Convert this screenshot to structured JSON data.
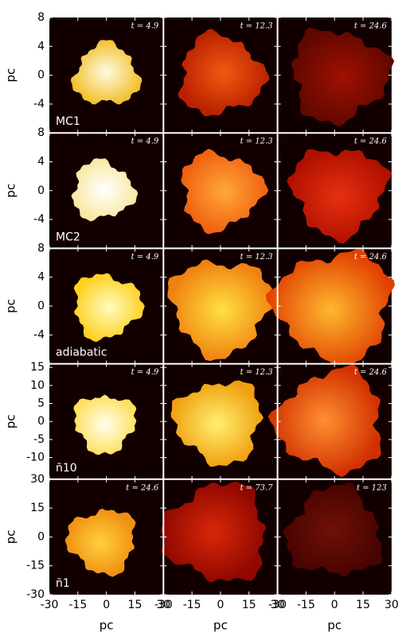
{
  "chart_data": {
    "type": "image-grid",
    "xlabel": "pc",
    "ylabel": "pc",
    "xlim": [
      -30,
      30
    ],
    "xticks": [
      -30,
      -15,
      0,
      15,
      30
    ],
    "rows": [
      {
        "label": "MC1",
        "ylim": [
          -8,
          8
        ],
        "yticks": [
          -4,
          0,
          4,
          8
        ],
        "times": [
          "t = 4.9",
          "t = 12.3",
          "t = 24.6"
        ],
        "colors": [
          [
            "#fffbe0",
            "#f2c030"
          ],
          [
            "#f05a10",
            "#b82000"
          ],
          [
            "#a01000",
            "#600800"
          ]
        ]
      },
      {
        "label": "MC2",
        "ylim": [
          -8,
          8
        ],
        "yticks": [
          -4,
          0,
          4,
          8
        ],
        "times": [
          "t = 4.9",
          "t = 12.3",
          "t = 24.6"
        ],
        "colors": [
          [
            "#ffffff",
            "#f8e8a0"
          ],
          [
            "#ffa838",
            "#f06010"
          ],
          [
            "#e83010",
            "#b01000"
          ]
        ]
      },
      {
        "label": "adiabatic",
        "ylim": [
          -8,
          8
        ],
        "yticks": [
          -4,
          0,
          4,
          8
        ],
        "times": [
          "t = 4.9",
          "t = 12.3",
          "t = 24.6"
        ],
        "colors": [
          [
            "#fffcc0",
            "#ffd020"
          ],
          [
            "#ffe040",
            "#f08010"
          ],
          [
            "#ffb830",
            "#e04000"
          ]
        ]
      },
      {
        "label": "n̄10",
        "ylim": [
          -16,
          16
        ],
        "yticks": [
          -10,
          -5,
          0,
          5,
          10,
          15
        ],
        "times": [
          "t = 4.9",
          "t = 12.3",
          "t = 24.6"
        ],
        "colors": [
          [
            "#fffff0",
            "#ffe060"
          ],
          [
            "#fff070",
            "#f0a010"
          ],
          [
            "#ff9030",
            "#d03000"
          ]
        ]
      },
      {
        "label": "n̄1",
        "ylim": [
          -30,
          30
        ],
        "yticks": [
          -30,
          -15,
          0,
          15,
          30
        ],
        "times": [
          "t = 24.6",
          "t = 73.7",
          "t = 123"
        ],
        "colors": [
          [
            "#ffd040",
            "#f09010"
          ],
          [
            "#d82808",
            "#900800"
          ],
          [
            "#701008",
            "#480400"
          ]
        ]
      }
    ]
  }
}
